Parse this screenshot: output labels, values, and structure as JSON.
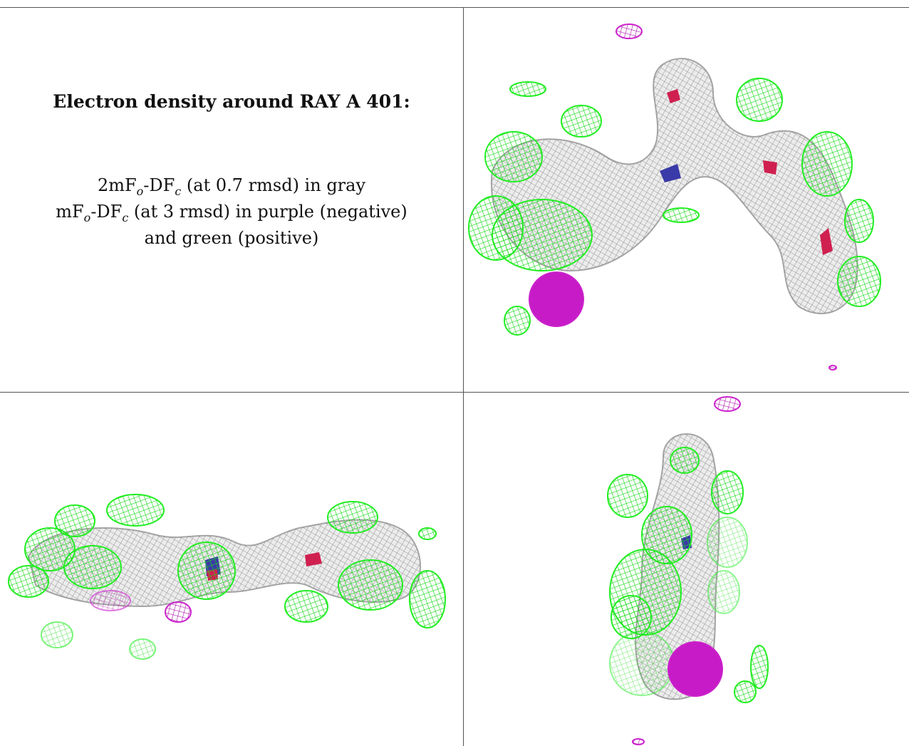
{
  "caption": {
    "title": "Electron density around RAY A 401:",
    "line1": {
      "a": "2mF",
      "sub_o": "o",
      "b": "-DF",
      "sub_c": "c",
      "c": " (at 0.7 rmsd) in gray"
    },
    "line2": {
      "a": "mF",
      "sub_o": "o",
      "b": "-DF",
      "sub_c": "c",
      "c": " (at 3 rmsd) in purple (negative)"
    },
    "line3": "and green (positive)"
  },
  "colors": {
    "map_2fofc": "#b4b4b4",
    "map_fofc_positive": "#22ee22",
    "map_fofc_negative": "#cc22cc",
    "atom_nitrogen": "#3a3aa8",
    "atom_oxygen": "#d02050"
  }
}
